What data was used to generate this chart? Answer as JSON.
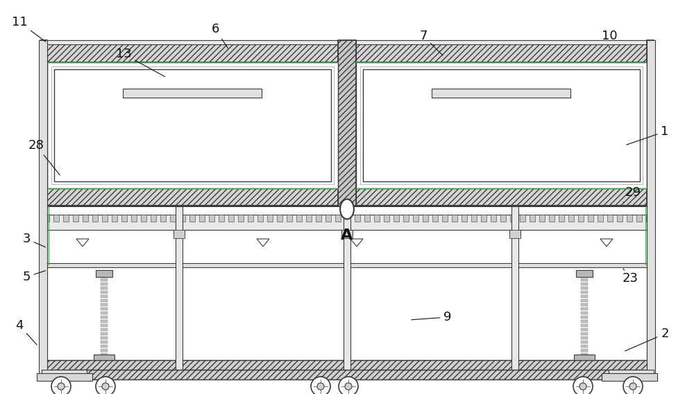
{
  "bg_color": "#ffffff",
  "lc": "#3a3a3a",
  "green": "#4aaa55",
  "light_blue": "#c8dce8",
  "hatch_fc": "#d8d8d8",
  "figsize": [
    10.0,
    5.69
  ],
  "dpi": 100,
  "labels": [
    [
      "11",
      28,
      32,
      68,
      62,
      "right"
    ],
    [
      "6",
      310,
      42,
      330,
      72,
      "center"
    ],
    [
      "13",
      178,
      78,
      240,
      112,
      "center"
    ],
    [
      "28",
      52,
      210,
      88,
      255,
      "right"
    ],
    [
      "3",
      38,
      345,
      68,
      358,
      "right"
    ],
    [
      "5",
      38,
      400,
      68,
      390,
      "right"
    ],
    [
      "4",
      28,
      470,
      55,
      500,
      "right"
    ],
    [
      "7",
      610,
      52,
      640,
      82,
      "center"
    ],
    [
      "10",
      878,
      52,
      878,
      72,
      "center"
    ],
    [
      "1",
      958,
      190,
      900,
      210,
      "left"
    ],
    [
      "29",
      912,
      278,
      898,
      292,
      "left"
    ],
    [
      "23",
      908,
      402,
      898,
      388,
      "left"
    ],
    [
      "2",
      958,
      482,
      898,
      508,
      "left"
    ],
    [
      "9",
      645,
      458,
      590,
      462,
      "center"
    ]
  ]
}
